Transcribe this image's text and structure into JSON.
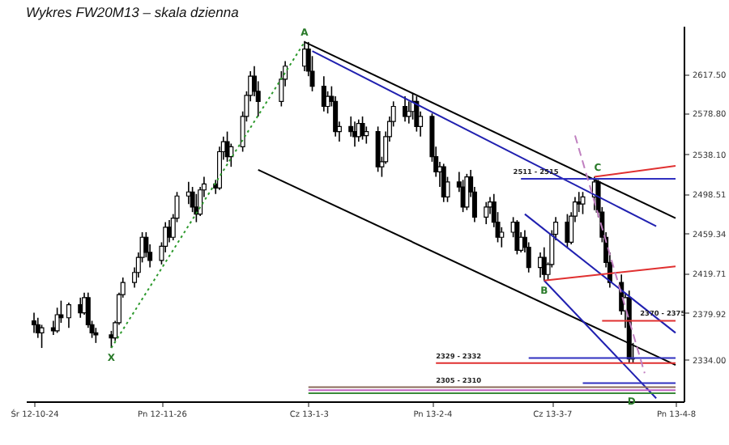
{
  "chart_data": {
    "type": "candlestick",
    "title": "Wykres FW20M13 – skala dzienna",
    "x": [
      "2012-10-24",
      "2012-10-25",
      "2012-10-26",
      "2012-10-29",
      "2012-10-30",
      "2012-10-31",
      "2012-11-02",
      "2012-11-05",
      "2012-11-06",
      "2012-11-07",
      "2012-11-08",
      "2012-11-09",
      "2012-11-13",
      "2012-11-14",
      "2012-11-15",
      "2012-11-16",
      "2012-11-19",
      "2012-11-20",
      "2012-11-21",
      "2012-11-22",
      "2012-11-23",
      "2012-11-26",
      "2012-11-27",
      "2012-11-28",
      "2012-11-29",
      "2012-11-30",
      "2012-12-03",
      "2012-12-04",
      "2012-12-05",
      "2012-12-06",
      "2012-12-07",
      "2012-12-10",
      "2012-12-11",
      "2012-12-12",
      "2012-12-13",
      "2012-12-14",
      "2012-12-17",
      "2012-12-18",
      "2012-12-19",
      "2012-12-20",
      "2012-12-21",
      "2012-12-27",
      "2012-12-28",
      "2013-01-02",
      "2013-01-03",
      "2013-01-04",
      "2013-01-07",
      "2013-01-08",
      "2013-01-09",
      "2013-01-10",
      "2013-01-11",
      "2013-01-14",
      "2013-01-15",
      "2013-01-16",
      "2013-01-17",
      "2013-01-18",
      "2013-01-21",
      "2013-01-22",
      "2013-01-23",
      "2013-01-24",
      "2013-01-25",
      "2013-01-28",
      "2013-01-29",
      "2013-01-30",
      "2013-01-31",
      "2013-02-01",
      "2013-02-04",
      "2013-02-05",
      "2013-02-06",
      "2013-02-07",
      "2013-02-08",
      "2013-02-11",
      "2013-02-12",
      "2013-02-13",
      "2013-02-14",
      "2013-02-15",
      "2013-02-18",
      "2013-02-19",
      "2013-02-20",
      "2013-02-21",
      "2013-02-22",
      "2013-02-25",
      "2013-02-26",
      "2013-02-27",
      "2013-02-28",
      "2013-03-01",
      "2013-03-04",
      "2013-03-05",
      "2013-03-06",
      "2013-03-07",
      "2013-03-08",
      "2013-03-11",
      "2013-03-12",
      "2013-03-13",
      "2013-03-14",
      "2013-03-15",
      "2013-03-18",
      "2013-03-19",
      "2013-03-20",
      "2013-03-21",
      "2013-03-22",
      "2013-03-25",
      "2013-03-26",
      "2013-03-27",
      "2013-03-28"
    ],
    "ohlc": [
      [
        2372,
        2380,
        2360,
        2368
      ],
      [
        2368,
        2375,
        2355,
        2360
      ],
      [
        2360,
        2368,
        2345,
        2365
      ],
      [
        2365,
        2372,
        2358,
        2362
      ],
      [
        2362,
        2385,
        2360,
        2378
      ],
      [
        2378,
        2392,
        2370,
        2375
      ],
      [
        2375,
        2390,
        2365,
        2388
      ],
      [
        2388,
        2395,
        2375,
        2380
      ],
      [
        2380,
        2400,
        2378,
        2395
      ],
      [
        2395,
        2400,
        2365,
        2368
      ],
      [
        2368,
        2372,
        2355,
        2360
      ],
      [
        2360,
        2365,
        2350,
        2358
      ],
      [
        2358,
        2362,
        2345,
        2355
      ],
      [
        2355,
        2372,
        2352,
        2370
      ],
      [
        2370,
        2400,
        2368,
        2398
      ],
      [
        2398,
        2415,
        2395,
        2410
      ],
      [
        2410,
        2425,
        2405,
        2420
      ],
      [
        2420,
        2440,
        2415,
        2435
      ],
      [
        2435,
        2460,
        2430,
        2455
      ],
      [
        2455,
        2460,
        2435,
        2440
      ],
      [
        2440,
        2448,
        2425,
        2432
      ],
      [
        2432,
        2450,
        2428,
        2446
      ],
      [
        2446,
        2470,
        2440,
        2465
      ],
      [
        2465,
        2472,
        2450,
        2455
      ],
      [
        2455,
        2478,
        2452,
        2474
      ],
      [
        2474,
        2500,
        2470,
        2496
      ],
      [
        2496,
        2510,
        2488,
        2500
      ],
      [
        2500,
        2505,
        2480,
        2485
      ],
      [
        2485,
        2498,
        2470,
        2478
      ],
      [
        2478,
        2505,
        2476,
        2502
      ],
      [
        2502,
        2515,
        2495,
        2508
      ],
      [
        2508,
        2512,
        2498,
        2504
      ],
      [
        2504,
        2545,
        2502,
        2540
      ],
      [
        2540,
        2555,
        2532,
        2550
      ],
      [
        2550,
        2560,
        2530,
        2535
      ],
      [
        2535,
        2548,
        2525,
        2545
      ],
      [
        2545,
        2580,
        2540,
        2575
      ],
      [
        2575,
        2600,
        2570,
        2596
      ],
      [
        2596,
        2620,
        2590,
        2615
      ],
      [
        2615,
        2625,
        2595,
        2600
      ],
      [
        2600,
        2610,
        2575,
        2590
      ],
      [
        2590,
        2620,
        2585,
        2612
      ],
      [
        2612,
        2630,
        2605,
        2625
      ],
      [
        2625,
        2650,
        2620,
        2642
      ],
      [
        2642,
        2649,
        2615,
        2620
      ],
      [
        2620,
        2635,
        2600,
        2605
      ],
      [
        2605,
        2615,
        2580,
        2585
      ],
      [
        2585,
        2600,
        2578,
        2595
      ],
      [
        2595,
        2605,
        2585,
        2590
      ],
      [
        2590,
        2595,
        2555,
        2560
      ],
      [
        2560,
        2570,
        2550,
        2565
      ],
      [
        2565,
        2575,
        2555,
        2560
      ],
      [
        2560,
        2570,
        2545,
        2555
      ],
      [
        2555,
        2572,
        2550,
        2568
      ],
      [
        2568,
        2575,
        2552,
        2556
      ],
      [
        2556,
        2565,
        2548,
        2560
      ],
      [
        2560,
        2565,
        2520,
        2525
      ],
      [
        2525,
        2535,
        2515,
        2530
      ],
      [
        2530,
        2560,
        2528,
        2555
      ],
      [
        2555,
        2575,
        2550,
        2570
      ],
      [
        2570,
        2590,
        2565,
        2585
      ],
      [
        2585,
        2595,
        2570,
        2575
      ],
      [
        2575,
        2590,
        2568,
        2580
      ],
      [
        2580,
        2598,
        2572,
        2590
      ],
      [
        2590,
        2595,
        2560,
        2565
      ],
      [
        2565,
        2580,
        2555,
        2575
      ],
      [
        2575,
        2578,
        2530,
        2535
      ],
      [
        2535,
        2545,
        2515,
        2520
      ],
      [
        2520,
        2530,
        2505,
        2525
      ],
      [
        2525,
        2528,
        2490,
        2495
      ],
      [
        2495,
        2515,
        2490,
        2510
      ],
      [
        2510,
        2520,
        2500,
        2505
      ],
      [
        2505,
        2512,
        2480,
        2485
      ],
      [
        2485,
        2518,
        2482,
        2515
      ],
      [
        2515,
        2522,
        2495,
        2500
      ],
      [
        2500,
        2505,
        2470,
        2475
      ],
      [
        2475,
        2490,
        2468,
        2485
      ],
      [
        2485,
        2495,
        2478,
        2490
      ],
      [
        2490,
        2498,
        2465,
        2470
      ],
      [
        2470,
        2480,
        2450,
        2455
      ],
      [
        2455,
        2465,
        2445,
        2460
      ],
      [
        2460,
        2475,
        2455,
        2470
      ],
      [
        2470,
        2472,
        2438,
        2442
      ],
      [
        2442,
        2460,
        2440,
        2455
      ],
      [
        2455,
        2462,
        2440,
        2445
      ],
      [
        2445,
        2450,
        2420,
        2425
      ],
      [
        2425,
        2440,
        2415,
        2435
      ],
      [
        2435,
        2445,
        2412,
        2418
      ],
      [
        2418,
        2430,
        2412,
        2428
      ],
      [
        2428,
        2462,
        2425,
        2458
      ],
      [
        2458,
        2475,
        2452,
        2470
      ],
      [
        2470,
        2478,
        2445,
        2450
      ],
      [
        2450,
        2480,
        2448,
        2476
      ],
      [
        2476,
        2495,
        2470,
        2490
      ],
      [
        2490,
        2500,
        2480,
        2488
      ],
      [
        2488,
        2500,
        2478,
        2495
      ],
      [
        2495,
        2515,
        2482,
        2510
      ],
      [
        2510,
        2512,
        2475,
        2480
      ],
      [
        2480,
        2485,
        2450,
        2455
      ],
      [
        2455,
        2460,
        2425,
        2430
      ],
      [
        2430,
        2440,
        2405,
        2410
      ],
      [
        2410,
        2418,
        2378,
        2382
      ],
      [
        2382,
        2400,
        2365,
        2395
      ],
      [
        2395,
        2402,
        2330,
        2334
      ],
      [
        2334,
        2350,
        2330,
        2334
      ]
    ],
    "series": [
      {
        "type": "line",
        "x": [
          "2012-11-13",
          "2013-01-02"
        ],
        "values": [
          2345,
          2649
        ],
        "color": "#2e9a2e",
        "line_style": "dotted"
      },
      {
        "type": "line",
        "x": [
          "2013-01-02",
          "2013-04-08"
        ],
        "values": [
          2649,
          2474
        ],
        "color": "#000000",
        "line_style": "solid"
      },
      {
        "type": "line",
        "x": [
          "2012-12-21",
          "2013-04-08"
        ],
        "values": [
          2522,
          2328
        ],
        "color": "#000000",
        "line_style": "solid"
      },
      {
        "type": "line",
        "x": [
          "2013-01-04",
          "2013-04-03"
        ],
        "values": [
          2640,
          2466
        ],
        "color": "#2020b0",
        "line_style": "solid"
      },
      {
        "type": "line",
        "x": [
          "2013-02-28",
          "2013-04-08"
        ],
        "values": [
          2478,
          2360
        ],
        "color": "#2020b0",
        "line_style": "solid"
      },
      {
        "type": "line",
        "x": [
          "2013-03-05",
          "2013-04-03"
        ],
        "values": [
          2412,
          2295
        ],
        "color": "#2020b0",
        "line_style": "solid"
      },
      {
        "type": "line",
        "x": [
          "2013-02-27",
          "2013-04-08"
        ],
        "values": [
          2513,
          2513
        ],
        "color": "#3030c0",
        "line_style": "solid"
      },
      {
        "type": "line",
        "x": [
          "2013-03-18",
          "2013-04-08"
        ],
        "values": [
          2515,
          2526
        ],
        "color": "#e03030",
        "line_style": "solid"
      },
      {
        "type": "line",
        "x": [
          "2013-03-05",
          "2013-04-08"
        ],
        "values": [
          2412,
          2426
        ],
        "color": "#e03030",
        "line_style": "solid"
      },
      {
        "type": "line",
        "x": [
          "2013-03-20",
          "2013-04-08"
        ],
        "values": [
          2372,
          2372
        ],
        "color": "#e03030",
        "line_style": "solid"
      },
      {
        "type": "line",
        "x": [
          "2013-02-05",
          "2013-04-08"
        ],
        "values": [
          2330,
          2330
        ],
        "color": "#e03030",
        "line_style": "solid"
      },
      {
        "type": "line",
        "x": [
          "2013-03-01",
          "2013-04-08"
        ],
        "values": [
          2335,
          2335
        ],
        "color": "#3030c0",
        "line_style": "solid"
      },
      {
        "type": "line",
        "x": [
          "2013-03-15",
          "2013-04-08"
        ],
        "values": [
          2310,
          2310
        ],
        "color": "#3030c0",
        "line_style": "solid"
      },
      {
        "type": "line",
        "x": [
          "2013-01-03",
          "2013-04-08"
        ],
        "values": [
          2306,
          2306
        ],
        "color": "#8b6a5a",
        "line_style": "solid"
      },
      {
        "type": "line",
        "x": [
          "2013-01-03",
          "2013-04-08"
        ],
        "values": [
          2303,
          2303
        ],
        "color": "#c060c0",
        "line_style": "solid"
      },
      {
        "type": "line",
        "x": [
          "2013-01-03",
          "2013-04-08"
        ],
        "values": [
          2300,
          2300
        ],
        "color": "#3a8a3a",
        "line_style": "solid"
      },
      {
        "type": "line",
        "x": [
          "2013-03-13",
          "2013-03-31"
        ],
        "values": [
          2556,
          2320
        ],
        "color": "#c080c0",
        "line_style": "dashed"
      }
    ],
    "annotations": [
      {
        "text": "A",
        "x": "2013-01-02",
        "y": 2649
      },
      {
        "text": "X",
        "x": "2012-11-13",
        "y": 2345
      },
      {
        "text": "B",
        "x": "2013-03-05",
        "y": 2412
      },
      {
        "text": "C",
        "x": "2013-03-18",
        "y": 2515
      },
      {
        "text": "D",
        "x": "2013-03-31",
        "y": 2300
      },
      {
        "text": "2511 - 2515",
        "x": "2013-02-25",
        "y": 2513
      },
      {
        "text": "2370 - 2375",
        "x": "2013-03-29",
        "y": 2372
      },
      {
        "text": "2329 - 2332",
        "x": "2013-02-05",
        "y": 2330
      },
      {
        "text": "2305 - 2310",
        "x": "2013-02-05",
        "y": 2306
      }
    ],
    "xlim": [
      "2012-10-24",
      "2013-04-08"
    ],
    "xticks": [
      {
        "value": "2012-10-24",
        "label": "Śr 12-10-24"
      },
      {
        "value": "2012-11-26",
        "label": "Pn 12-11-26"
      },
      {
        "value": "2013-01-03",
        "label": "Cz 13-1-3"
      },
      {
        "value": "2013-02-04",
        "label": "Pn 13-2-4"
      },
      {
        "value": "2013-03-07",
        "label": "Cz 13-3-7"
      },
      {
        "value": "2013-04-08",
        "label": "Pn 13-4-8"
      }
    ],
    "ylim": [
      2292,
      2665
    ],
    "yticks": [
      {
        "value": 2617.5,
        "label": "2617.50"
      },
      {
        "value": 2578.8,
        "label": "2578.80"
      },
      {
        "value": 2538.1,
        "label": "2538.10"
      },
      {
        "value": 2498.51,
        "label": "2498.51"
      },
      {
        "value": 2459.34,
        "label": "2459.34"
      },
      {
        "value": 2419.71,
        "label": "2419.71"
      },
      {
        "value": 2379.92,
        "label": "2379.92"
      },
      {
        "value": 2334,
        "label": "2334.00"
      }
    ],
    "grid": false
  }
}
